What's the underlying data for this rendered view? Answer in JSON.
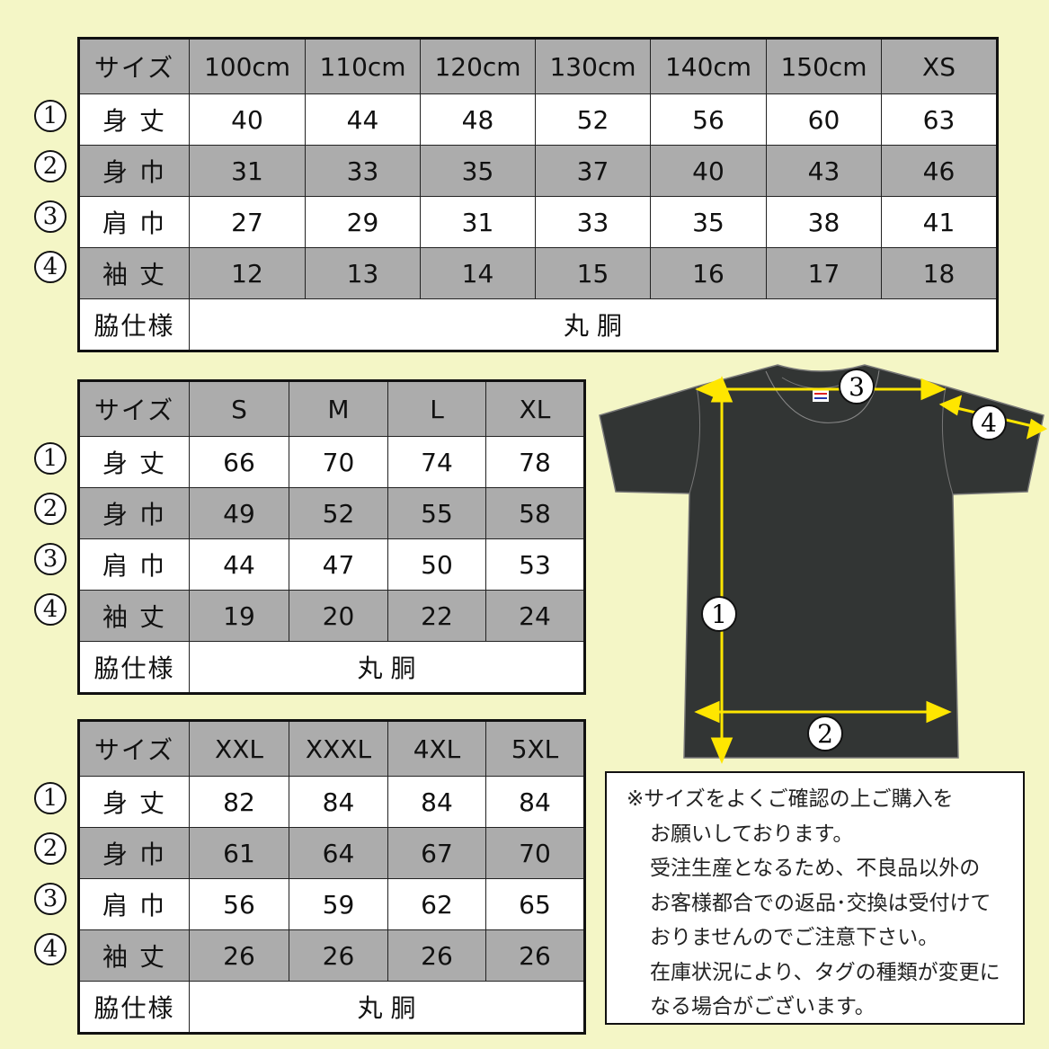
{
  "row_labels": [
    "サイズ",
    "身 丈",
    "身 巾",
    "肩 巾",
    "袖 丈",
    "脇仕様"
  ],
  "circle_numbers": [
    "1",
    "2",
    "3",
    "4"
  ],
  "tables": [
    {
      "sizes": [
        "100cm",
        "110cm",
        "120cm",
        "130cm",
        "140cm",
        "150cm",
        "XS"
      ],
      "rows": [
        [
          "40",
          "44",
          "48",
          "52",
          "56",
          "60",
          "63"
        ],
        [
          "31",
          "33",
          "35",
          "37",
          "40",
          "43",
          "46"
        ],
        [
          "27",
          "29",
          "31",
          "33",
          "35",
          "38",
          "41"
        ],
        [
          "12",
          "13",
          "14",
          "15",
          "16",
          "17",
          "18"
        ]
      ],
      "side": "丸 胴"
    },
    {
      "sizes": [
        "S",
        "M",
        "L",
        "XL"
      ],
      "rows": [
        [
          "66",
          "70",
          "74",
          "78"
        ],
        [
          "49",
          "52",
          "55",
          "58"
        ],
        [
          "44",
          "47",
          "50",
          "53"
        ],
        [
          "19",
          "20",
          "22",
          "24"
        ]
      ],
      "side": "丸 胴"
    },
    {
      "sizes": [
        "XXL",
        "XXXL",
        "4XL",
        "5XL"
      ],
      "rows": [
        [
          "82",
          "84",
          "84",
          "84"
        ],
        [
          "61",
          "64",
          "67",
          "70"
        ],
        [
          "56",
          "59",
          "62",
          "65"
        ],
        [
          "26",
          "26",
          "26",
          "26"
        ]
      ],
      "side": "丸 胴"
    }
  ],
  "diagram": {
    "labels": [
      "1",
      "2",
      "3",
      "4"
    ],
    "shirt_color": "#323534",
    "arrow_color": "#ffe600"
  },
  "notes": {
    "lines": [
      "※サイズをよくご確認の上ご購入を",
      "お願いしております。",
      "受注生産となるため、不良品以外の",
      "お客様都合での返品･交換は受付けて",
      "おりませんのでご注意下さい。",
      "在庫状況により、タグの種類が変更に",
      "なる場合がございます。"
    ]
  },
  "colors": {
    "background": "#f4f6c6",
    "gray_row": "#acacac"
  }
}
